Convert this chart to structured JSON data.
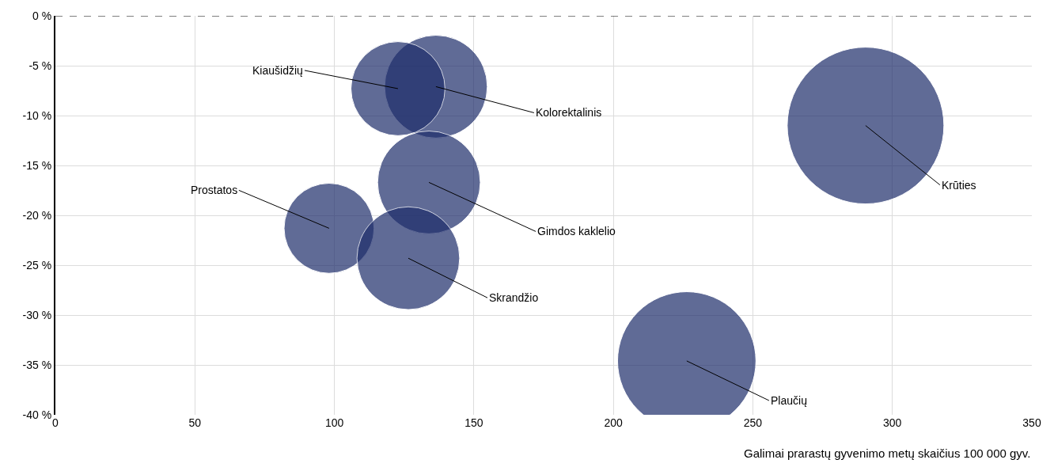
{
  "chart_data": {
    "type": "bubble",
    "xlabel": "Galimai prarastų gyvenimo metų skaičius 100 000 gyv.",
    "xlim": [
      0,
      350
    ],
    "xticks": [
      0,
      50,
      100,
      150,
      200,
      250,
      300,
      350
    ],
    "ylim": [
      -40,
      0
    ],
    "yticks": [
      {
        "value": -40,
        "label": "-40 %"
      },
      {
        "value": -35,
        "label": "-35 %"
      },
      {
        "value": -30,
        "label": "-30 %"
      },
      {
        "value": -25,
        "label": "-25 %"
      },
      {
        "value": -20,
        "label": "-20 %"
      },
      {
        "value": -15,
        "label": "-15 %"
      },
      {
        "value": -10,
        "label": "-10 %"
      },
      {
        "value": -5,
        "label": "-5 %"
      },
      {
        "value": 0,
        "label": "0 %"
      }
    ],
    "grid": true,
    "legend": false,
    "ref_lines": [
      {
        "axis": "y",
        "value": 0,
        "color": "#000000",
        "line_style": "dashed"
      }
    ],
    "series": [
      {
        "name": "Kolorektalinis",
        "color": "#1e2d6b",
        "x": [
          136.4
        ],
        "values": [
          -7.1
        ],
        "sizes": [
          0.43
        ]
      },
      {
        "name": "Kiaušidžių",
        "color": "#1e2d6b",
        "x": [
          122.8
        ],
        "values": [
          -7.3
        ],
        "sizes": [
          0.36
        ]
      },
      {
        "name": "Krūties",
        "color": "#1e2d6b",
        "x": [
          290.4
        ],
        "values": [
          -11.0
        ],
        "sizes": [
          1
        ]
      },
      {
        "name": "Gimdos kaklelio",
        "color": "#1e2d6b",
        "x": [
          133.9
        ],
        "values": [
          -16.7
        ],
        "sizes": [
          0.43
        ]
      },
      {
        "name": "Prostatos",
        "color": "#1e2d6b",
        "x": [
          98.1
        ],
        "values": [
          -21.3
        ],
        "sizes": [
          0.33
        ]
      },
      {
        "name": "Skrandžio",
        "color": "#1e2d6b",
        "x": [
          126.5
        ],
        "values": [
          -24.3
        ],
        "sizes": [
          0.43
        ]
      },
      {
        "name": "Plaučių",
        "color": "#1e2d6b",
        "x": [
          226.3
        ],
        "values": [
          -34.6
        ],
        "sizes": [
          0.78
        ]
      }
    ]
  }
}
